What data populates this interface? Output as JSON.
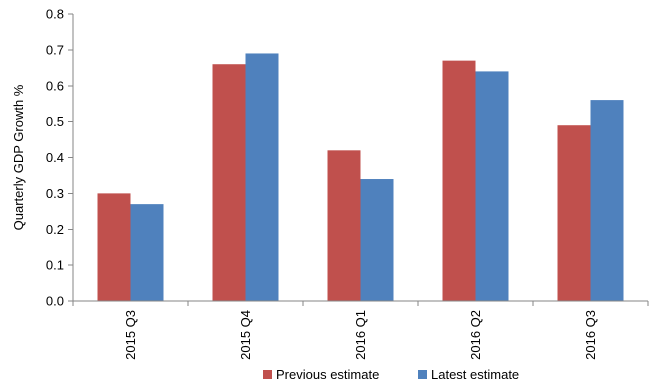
{
  "chart_data": {
    "type": "bar",
    "title": "",
    "xlabel": "",
    "ylabel": "Quarterly GDP Growth %",
    "ylim": [
      0,
      0.8
    ],
    "yticks": [
      "0.0",
      "0.1",
      "0.2",
      "0.3",
      "0.4",
      "0.5",
      "0.6",
      "0.7",
      "0.8"
    ],
    "categories": [
      "2015 Q3",
      "2015 Q4",
      "2016 Q1",
      "2016 Q2",
      "2016 Q3"
    ],
    "series": [
      {
        "name": "Previous estimate",
        "color": "#c0504d",
        "values": [
          0.3,
          0.66,
          0.42,
          0.67,
          0.49
        ]
      },
      {
        "name": "Latest estimate",
        "color": "#4f81bd",
        "values": [
          0.27,
          0.69,
          0.34,
          0.64,
          0.56
        ]
      }
    ],
    "grid": false,
    "legend_position": "bottom"
  }
}
